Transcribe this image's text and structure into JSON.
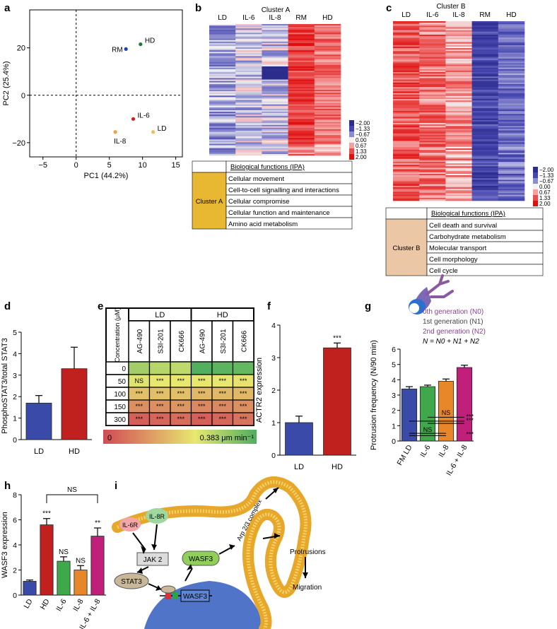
{
  "panel_labels": [
    "a",
    "b",
    "c",
    "d",
    "e",
    "f",
    "g",
    "h",
    "i"
  ],
  "chart_data": [
    {
      "panel": "a",
      "type": "scatter",
      "xlabel": "PC1 (44.2%)",
      "ylabel": "PC2 (25.4%)",
      "xlim": [
        -7,
        16
      ],
      "ylim": [
        -26,
        36
      ],
      "xticks": [
        -5,
        0,
        5,
        10,
        15
      ],
      "yticks": [
        -20,
        0,
        20
      ],
      "points": [
        {
          "label": "RM",
          "x": 7.5,
          "y": 19.5,
          "color": "#2a3fb0"
        },
        {
          "label": "HD",
          "x": 9.7,
          "y": 21.5,
          "color": "#1f7a2e"
        },
        {
          "label": "IL-6",
          "x": 8.6,
          "y": -10.0,
          "color": "#c8231f"
        },
        {
          "label": "IL-8",
          "x": 5.9,
          "y": -15.5,
          "color": "#f0a040"
        },
        {
          "label": "LD",
          "x": 11.6,
          "y": -15.5,
          "color": "#e8c060"
        }
      ]
    },
    {
      "panel": "d",
      "type": "bar",
      "categories": [
        "LD",
        "HD"
      ],
      "values": [
        1.7,
        3.3
      ],
      "errors": [
        0.35,
        1.0
      ],
      "colors": [
        "#3a4aa8",
        "#c0201e"
      ],
      "ylabel": "PhosphoSTAT3/total STAT3",
      "ylim": [
        0,
        5
      ],
      "yticks": [
        0,
        1,
        2,
        3,
        4,
        5
      ]
    },
    {
      "panel": "f",
      "type": "bar",
      "categories": [
        "LD",
        "HD"
      ],
      "values": [
        1.0,
        3.3
      ],
      "errors": [
        0.2,
        0.15
      ],
      "colors": [
        "#3a4aa8",
        "#c0201e"
      ],
      "ylabel": "ACTR2 expression",
      "ylim": [
        0,
        4
      ],
      "yticks": [
        0,
        1,
        2,
        3,
        4
      ],
      "annotations": [
        {
          "index": 1,
          "text": "***"
        }
      ]
    },
    {
      "panel": "g",
      "type": "bar",
      "categories": [
        "FM LD",
        "IL-6",
        "IL-8",
        "IL-6 + IL-8"
      ],
      "values": [
        3.4,
        3.55,
        3.9,
        4.8
      ],
      "errors": [
        0.15,
        0.1,
        0.15,
        0.15
      ],
      "colors": [
        "#3a4aa8",
        "#3ea84a",
        "#e8862a",
        "#c0207a"
      ],
      "ylabel": "Protrusion frequency (N/90 min)",
      "ylim": [
        0,
        6
      ],
      "yticks": [
        0,
        1,
        2,
        3,
        4,
        5,
        6
      ]
    },
    {
      "panel": "h",
      "type": "bar",
      "categories": [
        "LD",
        "HD",
        "IL-6",
        "IL-8",
        "IL-6 + IL-8"
      ],
      "values": [
        1.1,
        5.6,
        2.7,
        2.0,
        4.7
      ],
      "errors": [
        0.1,
        0.5,
        0.35,
        0.35,
        0.65
      ],
      "colors": [
        "#3a4aa8",
        "#c0201e",
        "#3ea84a",
        "#e8862a",
        "#c0207a"
      ],
      "ylabel": "WASF3 expression",
      "ylim": [
        0,
        8
      ],
      "yticks": [
        0,
        2,
        4,
        6,
        8
      ],
      "annotations": [
        {
          "index": 1,
          "text": "***"
        },
        {
          "index": 2,
          "text": "NS"
        },
        {
          "index": 3,
          "text": "NS"
        },
        {
          "index": 4,
          "text": "**"
        }
      ],
      "bracket": {
        "from": 1,
        "to": 4,
        "text": "NS"
      }
    },
    {
      "panel": "b",
      "type": "heatmap",
      "title": "Cluster A",
      "columns": [
        "LD",
        "IL-6",
        "IL-8",
        "RM",
        "HD"
      ],
      "scale": [
        "−2.00",
        "−1.33",
        "−0.67",
        "0.00",
        "0.67",
        "1.33",
        "2.00"
      ],
      "scale_colors": [
        "#2c2c8c",
        "#4646b0",
        "#8c8cd0",
        "#f2f2f2",
        "#f4a0a0",
        "#ea4c4c",
        "#e01010"
      ]
    },
    {
      "panel": "c",
      "type": "heatmap",
      "title": "Cluster B",
      "columns": [
        "LD",
        "IL-6",
        "IL-8",
        "RM",
        "HD"
      ],
      "scale": [
        "−2.00",
        "−1.33",
        "−0.67",
        "0.00",
        "0.67",
        "1.33",
        "2.00"
      ],
      "scale_colors": [
        "#2c2c8c",
        "#4646b0",
        "#8c8cd0",
        "#f2f2f2",
        "#f4a0a0",
        "#ea4c4c",
        "#e01010"
      ]
    }
  ],
  "ipa_a": {
    "header": "Biological functions (IPA)",
    "cluster": "Cluster A",
    "color": "#e9b832",
    "rows": [
      "Cellular movement",
      "Cell-to-cell signalling and interactions",
      "Cellular compromise",
      "Cellular function and maintenance",
      "Amino acid metabolism"
    ]
  },
  "ipa_b": {
    "header": "Biological functions (IPA)",
    "cluster": "Cluster B",
    "color": "#ecc7a5",
    "rows": [
      "Cell death and survival",
      "Carbohydrate metabolism",
      "Molecular transport",
      "Cell morphology",
      "Cell cycle"
    ]
  },
  "panel_e": {
    "header_label": "Concentration (μM)",
    "groups": [
      "LD",
      "HD"
    ],
    "drugs": [
      "AG-490",
      "S3I-201",
      "CK666"
    ],
    "concentrations": [
      "0",
      "50",
      "100",
      "150",
      "300"
    ],
    "cells": [
      [
        "",
        "",
        "",
        "",
        "",
        ""
      ],
      [
        "NS",
        "***",
        "***",
        "***",
        "***",
        "***"
      ],
      [
        "***",
        "***",
        "***",
        "***",
        "***",
        "***"
      ],
      [
        "***",
        "***",
        "***",
        "***",
        "***",
        "***"
      ],
      [
        "***",
        "***",
        "***",
        "***",
        "***",
        "***"
      ]
    ],
    "rates": [
      [
        0.3,
        0.28,
        0.27,
        0.38,
        0.37,
        0.36
      ],
      [
        0.24,
        0.23,
        0.23,
        0.23,
        0.23,
        0.22
      ],
      [
        0.17,
        0.17,
        0.17,
        0.16,
        0.16,
        0.16
      ],
      [
        0.1,
        0.1,
        0.11,
        0.09,
        0.09,
        0.1
      ],
      [
        0.03,
        0.04,
        0.05,
        0.03,
        0.04,
        0.06
      ]
    ],
    "scale_min": "0",
    "scale_max": "0.383 μm min⁻¹",
    "scale_max_value": 0.383
  },
  "panel_g_legend": {
    "gen0": "0th generation (N0)",
    "gen1": "1st generation (N1)",
    "gen2": "2nd generation (N2)",
    "formula": "N = N0 + N1 + N2"
  },
  "panel_g_sig": [
    "NS",
    "NS",
    "***",
    "***",
    "***"
  ],
  "panel_i": {
    "receptor1": "IL-6R",
    "receptor2": "IL-8R",
    "jak": "JAK 2",
    "stat": "STAT3",
    "wasf": "WASF3",
    "gene": "WASF3",
    "complex": "Arp 2/3 complex",
    "protrusions": "Protrusions",
    "migration": "Migration"
  }
}
